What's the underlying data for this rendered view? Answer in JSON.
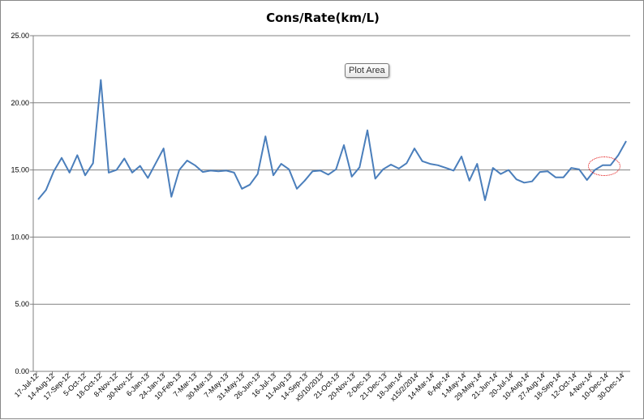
{
  "chart_data": {
    "type": "line",
    "title": "Cons/Rate(km/L)",
    "xlabel": "",
    "ylabel": "",
    "ylim": [
      0,
      25
    ],
    "y_ticks": [
      "0.00",
      "5.00",
      "10.00",
      "15.00",
      "20.00",
      "25.00"
    ],
    "grid": true,
    "legend": "none",
    "color": "#4a7ebb",
    "x_tick_labels": [
      "17-Jul-12",
      "14-Aug-12",
      "17-Sep-12",
      "5-Oct-12",
      "18-Oct-12",
      "8-Nov-12",
      "30-Nov-12",
      "6-Jan-13",
      "24-Jan-13",
      "10-Feb-13",
      "7-Mar-13",
      "30-Mar-13",
      "7-May-13",
      "31-May-13",
      "26-Jun-13",
      "16-Jul-13",
      "11-Aug-13",
      "14-Sep-13",
      "x5/10/2013",
      "21-Oct-13",
      "20-Nov-13",
      "2-Dec-13",
      "21-Dec-13",
      "18-Jan-14",
      "x15/2/2014",
      "14-Mar-14",
      "6-Apr-14",
      "1-May-14",
      "29-May-14",
      "21-Jun-14",
      "20-Jul-14",
      "10-Aug-14",
      "27-Aug-14",
      "18-Sep-14",
      "12-Oct-14",
      "4-Nov-14",
      "10-Dec-14",
      "30-Dec-14"
    ],
    "series": [
      {
        "values": [
          12.8,
          13.5,
          14.9,
          15.9,
          14.8,
          16.1,
          14.6,
          15.5,
          21.7,
          14.8,
          15.0,
          15.85,
          14.8,
          15.3,
          14.4,
          15.5,
          16.6,
          13.0,
          15.0,
          15.7,
          15.35,
          14.85,
          14.95,
          14.9,
          14.95,
          14.8,
          13.6,
          13.9,
          14.7,
          17.5,
          14.6,
          15.45,
          15.05,
          13.6,
          14.2,
          14.9,
          14.95,
          14.65,
          15.05,
          16.85,
          14.5,
          15.2,
          17.95,
          14.35,
          15.05,
          15.4,
          15.1,
          15.5,
          16.6,
          15.65,
          15.45,
          15.35,
          15.15,
          14.95,
          16.0,
          14.2,
          15.45,
          12.75,
          15.15,
          14.7,
          15.0,
          14.3,
          14.05,
          14.15,
          14.85,
          14.9,
          14.45,
          14.45,
          15.15,
          15.05,
          14.25,
          15.0,
          15.35,
          15.35,
          16.1,
          17.15
        ]
      }
    ]
  },
  "overlay": {
    "tooltip_text": "Plot Area",
    "annotation_color": "#e00000"
  }
}
